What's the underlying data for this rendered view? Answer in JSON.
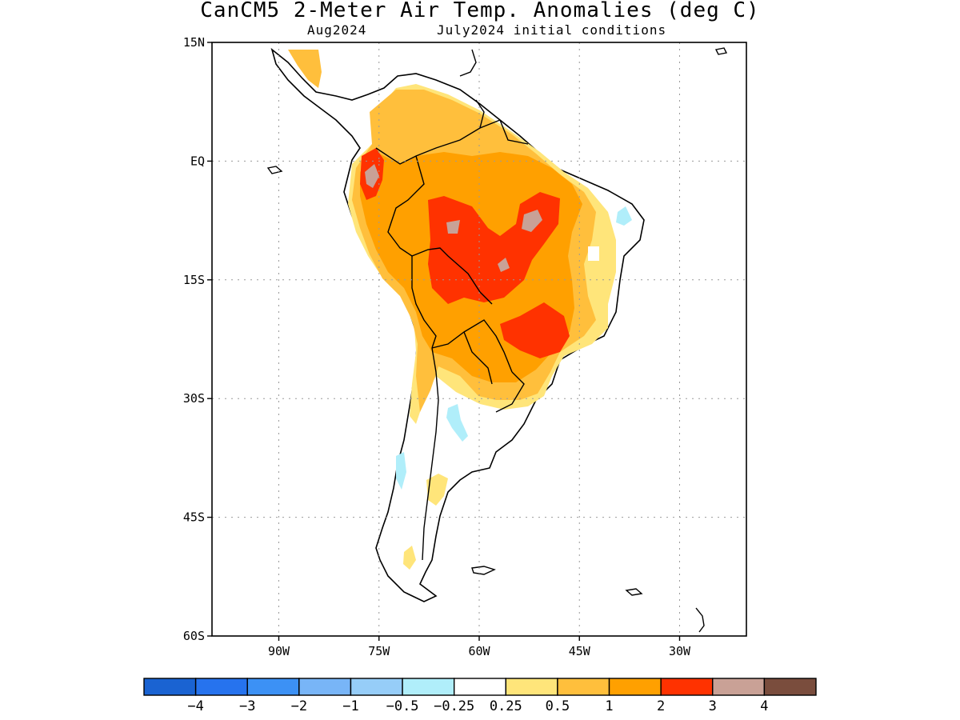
{
  "title": "CanCM5 2-Meter Air Temp. Anomalies (deg C)",
  "subtitle_left": "Aug2024",
  "subtitle_right": "July2024 initial conditions",
  "axes": {
    "lat_ticks": [
      {
        "value": 15,
        "label": "15N"
      },
      {
        "value": 0,
        "label": "EQ"
      },
      {
        "value": -15,
        "label": "15S"
      },
      {
        "value": -30,
        "label": "30S"
      },
      {
        "value": -45,
        "label": "45S"
      },
      {
        "value": -60,
        "label": "60S"
      }
    ],
    "lon_ticks": [
      {
        "value": -90,
        "label": "90W"
      },
      {
        "value": -75,
        "label": "75W"
      },
      {
        "value": -60,
        "label": "60W"
      },
      {
        "value": -45,
        "label": "45W"
      },
      {
        "value": -30,
        "label": "30W"
      }
    ],
    "lon_range": [
      -100,
      -20
    ],
    "lat_range": [
      -60,
      15
    ],
    "grid": true
  },
  "colorbar": {
    "colors": [
      "#1a63d2",
      "#2673ee",
      "#3c91f5",
      "#78b5f7",
      "#96cdf8",
      "#b0eefa",
      "#ffffff",
      "#ffe57a",
      "#ffbf3c",
      "#ffa000",
      "#ff3200",
      "#c9a196",
      "#7a4d3d"
    ],
    "labels": [
      "−4",
      "−3",
      "−2",
      "−1",
      "−0.5",
      "−0.25",
      "0.25",
      "0.5",
      "1",
      "2",
      "3",
      "4"
    ]
  },
  "colors": {
    "land_outline": "#000000",
    "grid": "#9a9a9a"
  }
}
